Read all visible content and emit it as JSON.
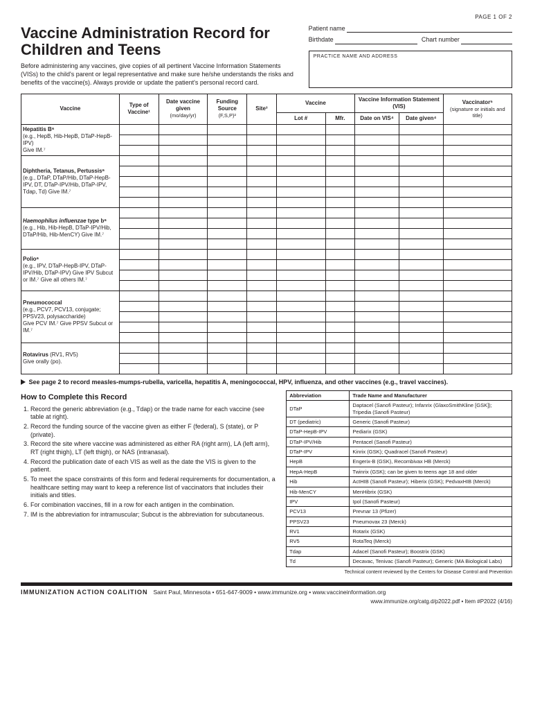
{
  "page_indicator": "PAGE 1 OF 2",
  "title": "Vaccine Administration Record for Children and Teens",
  "intro": "Before administering any vaccines, give copies of all pertinent Vaccine Information Statements (VISs) to the child's parent or legal representative and make sure he/she understands the risks and benefits of the vaccine(s). Always provide or update the patient's personal record card.",
  "patient_fields": {
    "name_label": "Patient name",
    "birthdate_label": "Birthdate",
    "chart_label": "Chart number",
    "practice_box": "PRACTICE NAME AND ADDRESS"
  },
  "table": {
    "col_widths_pct": [
      20,
      8,
      10,
      8,
      6,
      10,
      6,
      9,
      9,
      14
    ],
    "headers": {
      "vaccine": "Vaccine",
      "type": "Type of Vaccine¹",
      "date": "Date vaccine given",
      "date_sub": "(mo/day/yr)",
      "funding": "Funding Source",
      "funding_sub": "(F,S,P)²",
      "site": "Site³",
      "vaccine2": "Vaccine",
      "lot": "Lot #",
      "mfr": "Mfr.",
      "vis": "Vaccine Information Statement (VIS)",
      "vis_date": "Date on VIS⁴",
      "date_given": "Date given⁴",
      "vaccinator": "Vaccinator⁵",
      "vaccinator_sub": "(signature or initials and title)"
    },
    "sections": [
      {
        "label_html": "<b>Hepatitis B⁶</b><br>(e.g., HepB, Hib-HepB, DTaP-HepB-IPV)<br>Give IM.⁷",
        "rows": 3
      },
      {
        "label_html": "<b>Diphtheria, Tetanus, Pertussis⁶</b><br>(e.g., DTaP, DTaP/Hib, DTaP-HepB-IPV, DT, DTaP-IPV/Hib, DTaP-IPV, Tdap, Td) Give IM.⁷",
        "rows": 5
      },
      {
        "label_html": "<b><i>Haemophilus influenzae</i> type b⁶</b><br>(e.g., Hib, Hib-HepB, DTaP-IPV/Hib, DTaP/Hib, Hib-MenCY) Give IM.⁷",
        "rows": 4
      },
      {
        "label_html": "<b>Polio⁶</b><br>(e.g., IPV, DTaP-HepB-IPV, DTaP-IPV/Hib, DTaP-IPV) Give IPV Subcut or IM.⁷ Give all others IM.⁷",
        "rows": 4
      },
      {
        "label_html": "<b>Pneumococcal</b><br>(e.g., PCV7, PCV13, conjugate; PPSV23, polysaccharide)<br>Give PCV IM.⁷ Give PPSV Subcut or IM.⁷",
        "rows": 5
      },
      {
        "label_html": "<b>Rotavirus</b> (RV1, RV5)<br>Give orally (po).",
        "rows": 3
      }
    ]
  },
  "see_page2": "See page 2 to record measles-mumps-rubella, varicella, hepatitis A, meningococcal, HPV, influenza, and other vaccines (e.g., travel vaccines).",
  "howto_title": "How to Complete this Record",
  "howto_steps": [
    "Record the generic abbreviation (e.g., Tdap) or the trade name for each vaccine (see table at right).",
    "Record the funding source of the vaccine given as either F (federal), S (state), or P (private).",
    "Record the site where vaccine was administered as either RA (right arm), LA (left arm), RT (right thigh), LT (left thigh), or NAS (intranasal).",
    "Record the publication date of each VIS as well as the date the VIS is given to the patient.",
    "To meet the space constraints of this form and federal requirements for documentation, a healthcare setting may want to keep a reference list of vaccinators that includes their initials and titles.",
    "For combination vaccines, fill in a row for each antigen in the combination.",
    "IM is the abbreviation for intramuscular; Subcut is the abbreviation for subcutaneous."
  ],
  "abbr_table": {
    "headers": [
      "Abbreviation",
      "Trade Name and Manufacturer"
    ],
    "rows": [
      [
        "DTaP",
        "Daptacel (Sanofi Pasteur); Infanrix (GlaxoSmithKline [GSK]); Tripedia (Sanofi Pasteur)"
      ],
      [
        "DT (pediatric)",
        "Generic (Sanofi Pasteur)"
      ],
      [
        "DTaP-HepB-IPV",
        "Pediarix (GSK)"
      ],
      [
        "DTaP-IPV/Hib",
        "Pentacel (Sanofi Pasteur)"
      ],
      [
        "DTaP-IPV",
        "Kinrix (GSK); Quadracel (Sanofi Pasteur)"
      ],
      [
        "HepB",
        "Engerix-B (GSK), Recombivax HB (Merck)"
      ],
      [
        "HepA-HepB",
        "Twinrix (GSK); can be given to teens age 18 and older"
      ],
      [
        "Hib",
        "ActHIB (Sanofi Pasteur); Hiberix (GSK); PedvaxHIB (Merck)"
      ],
      [
        "Hib-MenCY",
        "MenHibrix (GSK)"
      ],
      [
        "IPV",
        "Ipol (Sanofi Pasteur)"
      ],
      [
        "PCV13",
        "Prevnar 13 (Pfizer)"
      ],
      [
        "PPSV23",
        "Pneumovax 23 (Merck)"
      ],
      [
        "RV1",
        "Rotarix (GSK)"
      ],
      [
        "RV5",
        "RotaTeq (Merck)"
      ],
      [
        "Tdap",
        "Adacel (Sanofi Pasteur); Boostrix (GSK)"
      ],
      [
        "Td",
        "Decavac, Tenivac (Sanofi Pasteur); Generic (MA Biological Labs)"
      ]
    ]
  },
  "tech_note": "Technical content reviewed by the Centers for Disease Control and Prevention",
  "footer": {
    "org": "Immunization Action Coalition",
    "rest": "Saint Paul, Minnesota • 651-647-9009 • www.immunize.org • www.vaccineinformation.org"
  },
  "sub_footer": "www.immunize.org/catg.d/p2022.pdf • Item #P2022 (4/16)"
}
